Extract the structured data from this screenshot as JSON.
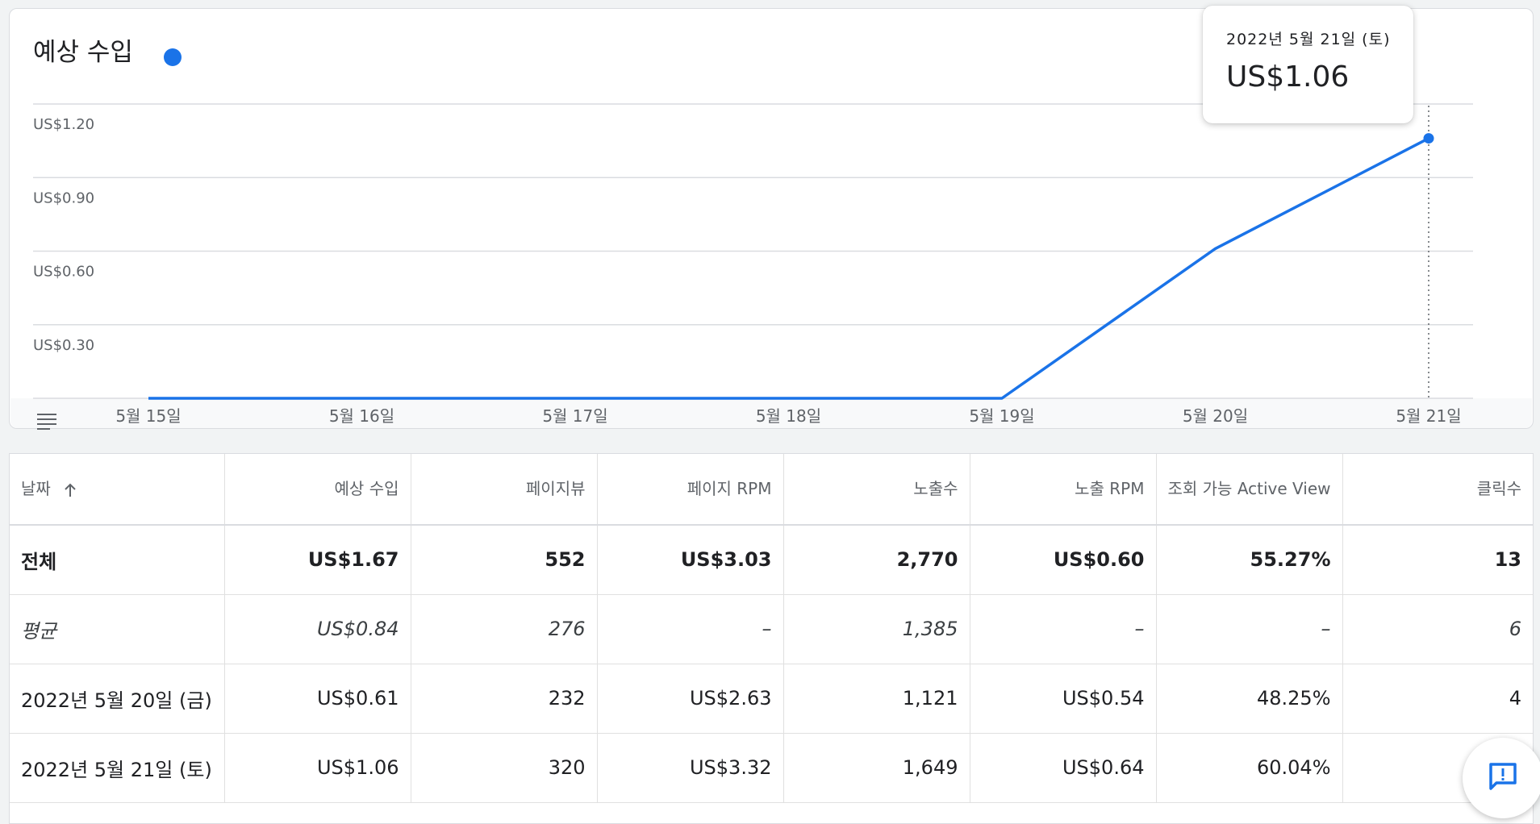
{
  "card": {
    "title": "예상 수입",
    "legend_color": "#1a73e8"
  },
  "tooltip": {
    "date": "2022년 5월 21일 (토)",
    "value": "US$1.06"
  },
  "chart_data": {
    "type": "line",
    "title": "예상 수입",
    "x": [
      "5월 15일",
      "5월 16일",
      "5월 17일",
      "5월 18일",
      "5월 19일",
      "5월 20일",
      "5월 21일"
    ],
    "series": [
      {
        "values": [
          0,
          0,
          0,
          0,
          0,
          0.61,
          1.06
        ],
        "color": "#1a73e8"
      }
    ],
    "yticks": [
      0.3,
      0.6,
      0.9,
      1.2
    ],
    "ytick_labels": [
      "US$0.30",
      "US$0.60",
      "US$0.90",
      "US$1.20"
    ],
    "ylim": [
      0,
      1.2
    ],
    "grid": true,
    "highlighted_index": 6
  },
  "table": {
    "columns": [
      "날짜",
      "예상 수입",
      "페이지뷰",
      "페이지 RPM",
      "노출수",
      "노출 RPM",
      "조회 가능 Active View",
      "클릭수"
    ],
    "rows": [
      {
        "kind": "total",
        "cells": [
          "전체",
          "US$1.67",
          "552",
          "US$3.03",
          "2,770",
          "US$0.60",
          "55.27%",
          "13"
        ]
      },
      {
        "kind": "avg",
        "cells": [
          "평균",
          "US$0.84",
          "276",
          "–",
          "1,385",
          "–",
          "–",
          "6"
        ]
      },
      {
        "kind": "row",
        "cells": [
          "2022년 5월 20일 (금)",
          "US$0.61",
          "232",
          "US$2.63",
          "1,121",
          "US$0.54",
          "48.25%",
          "4"
        ]
      },
      {
        "kind": "row",
        "cells": [
          "2022년 5월 21일 (토)",
          "US$1.06",
          "320",
          "US$3.32",
          "1,649",
          "US$0.64",
          "60.04%",
          ""
        ]
      }
    ]
  }
}
